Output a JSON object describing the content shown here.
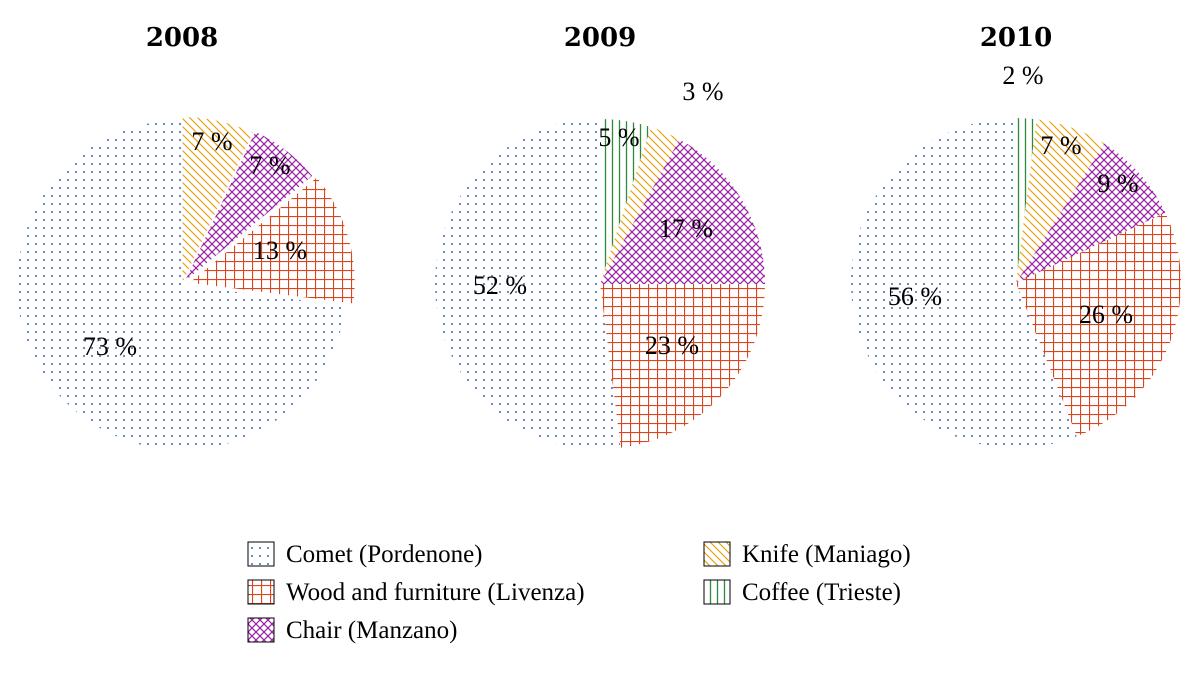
{
  "chart_data": {
    "type": "pie",
    "categories": [
      {
        "key": "comet",
        "label": "Comet (Pordenone)"
      },
      {
        "key": "wood",
        "label": "Wood and furniture (Livenza)"
      },
      {
        "key": "chair",
        "label": "Chair (Manzano)"
      },
      {
        "key": "knife",
        "label": "Knife (Maniago)"
      },
      {
        "key": "coffee",
        "label": "Coffee (Trieste)"
      }
    ],
    "colors": {
      "comet": "#5b7fc9",
      "wood": "#d9451e",
      "chair": "#9b1fa6",
      "knife": "#e8a317",
      "coffee": "#2e8b3d"
    },
    "pies": [
      {
        "title": "2008",
        "slices": [
          {
            "key": "comet",
            "value": 73,
            "label": "73 %"
          },
          {
            "key": "wood",
            "value": 13,
            "label": "13 %"
          },
          {
            "key": "chair",
            "value": 7,
            "label": "7 %"
          },
          {
            "key": "knife",
            "value": 7,
            "label": "7 %"
          }
        ]
      },
      {
        "title": "2009",
        "slices": [
          {
            "key": "comet",
            "value": 52,
            "label": "52 %"
          },
          {
            "key": "wood",
            "value": 23,
            "label": "23 %"
          },
          {
            "key": "chair",
            "value": 17,
            "label": "17 %"
          },
          {
            "key": "knife",
            "value": 3,
            "label": "3 %"
          },
          {
            "key": "coffee",
            "value": 5,
            "label": "5 %"
          }
        ]
      },
      {
        "title": "2010",
        "slices": [
          {
            "key": "comet",
            "value": 56,
            "label": "56 %"
          },
          {
            "key": "wood",
            "value": 26,
            "label": "26 %"
          },
          {
            "key": "chair",
            "value": 9,
            "label": "9 %"
          },
          {
            "key": "knife",
            "value": 7,
            "label": "7 %"
          },
          {
            "key": "coffee",
            "value": 2,
            "label": "2 %"
          }
        ]
      }
    ],
    "legend_order": [
      "comet",
      "knife",
      "wood",
      "coffee",
      "chair"
    ]
  }
}
